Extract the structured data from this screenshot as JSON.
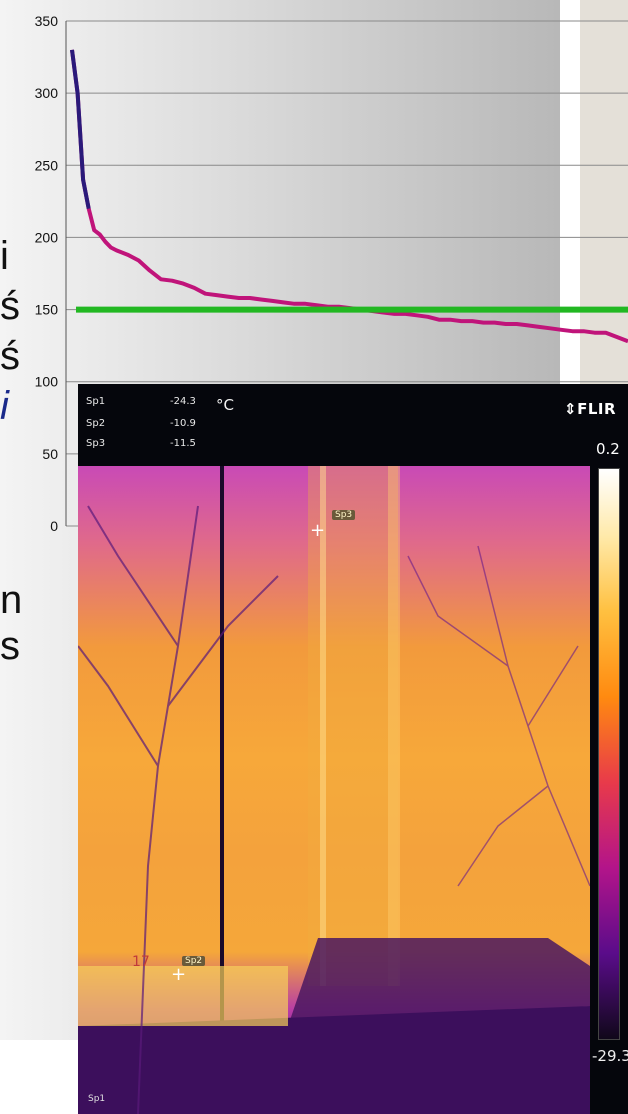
{
  "chart_data": {
    "type": "line",
    "y_ticks": [
      "350",
      "300",
      "250",
      "200",
      "150",
      "100",
      "50",
      "0"
    ],
    "ylim": [
      0,
      350
    ],
    "grid": true,
    "series": [
      {
        "color": "#c0147a",
        "x": [
          0,
          1,
          2,
          3,
          4,
          5,
          6,
          7,
          8,
          10,
          12,
          14,
          16,
          18,
          20,
          22,
          24,
          26,
          28,
          30,
          32,
          34,
          36,
          38,
          40,
          42,
          44,
          46,
          48,
          50,
          52,
          54,
          56,
          58,
          60,
          62,
          64,
          66,
          68,
          70,
          72,
          74,
          76,
          78,
          80,
          82,
          84,
          86,
          88,
          90,
          92,
          94,
          96,
          98,
          100
        ],
        "values": [
          330,
          300,
          240,
          220,
          205,
          202,
          197,
          193,
          191,
          188,
          184,
          177,
          171,
          170,
          168,
          165,
          161,
          160,
          159,
          158,
          158,
          157,
          156,
          155,
          154,
          154,
          153,
          152,
          152,
          151,
          150,
          149,
          148,
          147,
          147,
          146,
          145,
          143,
          143,
          142,
          142,
          141,
          141,
          140,
          140,
          139,
          138,
          137,
          136,
          135,
          135,
          134,
          134,
          131,
          128
        ]
      }
    ],
    "threshold": {
      "value": 150,
      "color": "#22b822"
    }
  },
  "thermal": {
    "spots": [
      {
        "label": "Sp1",
        "value": "-24.3"
      },
      {
        "label": "Sp2",
        "value": "-10.9"
      },
      {
        "label": "Sp3",
        "value": "-11.5"
      }
    ],
    "unit": "°C",
    "brand": "⇕FLIR",
    "scale_max": "0.2",
    "scale_min": "-29.3",
    "tag_sp3": "Sp3",
    "tag_sp2": "Sp2",
    "mark_17": "17",
    "footer_sp1": "Sp1"
  },
  "partial_glyphs": [
    "i",
    "ś",
    "ś",
    "i",
    "n",
    "s"
  ]
}
